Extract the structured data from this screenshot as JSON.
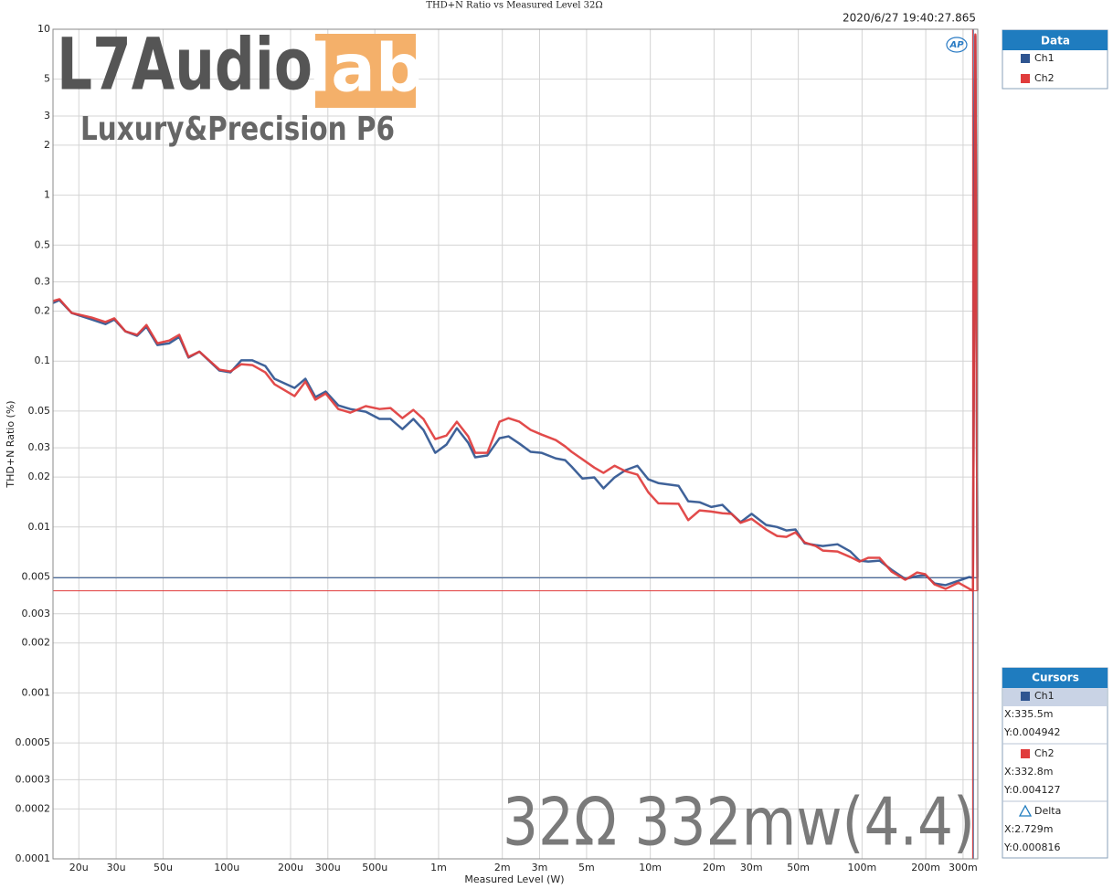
{
  "chart_data": {
    "type": "line",
    "title": "THD+N Ratio vs Measured Level 32Ω",
    "timestamp": "2020/6/27 19:40:27.865",
    "logo": "AP",
    "xlabel": "Measured Level (W)",
    "ylabel": "THD+N Ratio (%)",
    "xscale": "log",
    "yscale": "log",
    "grid": true,
    "xlim": [
      1.51e-05,
      0.352
    ],
    "ylim": [
      0.0001,
      10
    ],
    "xticks": [
      {
        "value": 2e-05,
        "label": "20u"
      },
      {
        "value": 3e-05,
        "label": "30u"
      },
      {
        "value": 5e-05,
        "label": "50u"
      },
      {
        "value": 0.0001,
        "label": "100u"
      },
      {
        "value": 0.0002,
        "label": "200u"
      },
      {
        "value": 0.0003,
        "label": "300u"
      },
      {
        "value": 0.0005,
        "label": "500u"
      },
      {
        "value": 0.001,
        "label": "1m"
      },
      {
        "value": 0.002,
        "label": "2m"
      },
      {
        "value": 0.003,
        "label": "3m"
      },
      {
        "value": 0.005,
        "label": "5m"
      },
      {
        "value": 0.01,
        "label": "10m"
      },
      {
        "value": 0.02,
        "label": "20m"
      },
      {
        "value": 0.03,
        "label": "30m"
      },
      {
        "value": 0.05,
        "label": "50m"
      },
      {
        "value": 0.1,
        "label": "100m"
      },
      {
        "value": 0.2,
        "label": "200m"
      },
      {
        "value": 0.3,
        "label": "300m"
      }
    ],
    "yticks": [
      10,
      5,
      3,
      2,
      1,
      0.5,
      0.3,
      0.2,
      0.1,
      0.05,
      0.03,
      0.02,
      0.01,
      0.005,
      0.003,
      0.002,
      0.001,
      0.0005,
      0.0003,
      0.0002,
      0.0001
    ],
    "x": [
      1.51e-05,
      1.62e-05,
      1.85e-05,
      2.3e-05,
      2.67e-05,
      2.94e-05,
      3.32e-05,
      3.77e-05,
      4.17e-05,
      4.7e-05,
      5.35e-05,
      5.96e-05,
      6.59e-05,
      7.42e-05,
      9.23e-05,
      0.000104,
      0.000117,
      0.000132,
      0.000152,
      0.000168,
      0.000209,
      0.000235,
      0.000262,
      0.000293,
      0.000336,
      0.000383,
      0.000453,
      0.000526,
      0.000593,
      0.000675,
      0.00076,
      0.000848,
      0.000964,
      0.00109,
      0.00122,
      0.00138,
      0.00149,
      0.0017,
      0.00194,
      0.00214,
      0.00241,
      0.00272,
      0.00306,
      0.00358,
      0.00396,
      0.00425,
      0.00478,
      0.00544,
      0.00601,
      0.00678,
      0.00763,
      0.00869,
      0.00978,
      0.0109,
      0.0136,
      0.0151,
      0.0171,
      0.0194,
      0.0219,
      0.0242,
      0.0267,
      0.0301,
      0.0352,
      0.0397,
      0.0439,
      0.0485,
      0.0536,
      0.0604,
      0.0653,
      0.0766,
      0.0881,
      0.0973,
      0.107,
      0.121,
      0.138,
      0.16,
      0.182,
      0.199,
      0.22,
      0.248,
      0.285,
      0.321,
      0.334,
      0.343,
      0.351
    ],
    "series": [
      {
        "name": "Ch1",
        "color": "#2f5590",
        "values": [
          0.224,
          0.233,
          0.195,
          0.178,
          0.167,
          0.178,
          0.151,
          0.142,
          0.161,
          0.125,
          0.128,
          0.14,
          0.105,
          0.114,
          0.0877,
          0.0855,
          0.101,
          0.101,
          0.0934,
          0.0782,
          0.0689,
          0.0782,
          0.0607,
          0.0655,
          0.0541,
          0.0514,
          0.0495,
          0.0448,
          0.0448,
          0.0389,
          0.0448,
          0.0385,
          0.028,
          0.0314,
          0.0394,
          0.0322,
          0.0263,
          0.027,
          0.0343,
          0.0352,
          0.0318,
          0.0284,
          0.028,
          0.0259,
          0.0253,
          0.0231,
          0.0196,
          0.0199,
          0.0171,
          0.0199,
          0.022,
          0.0234,
          0.0194,
          0.0184,
          0.0177,
          0.0143,
          0.0141,
          0.0132,
          0.0136,
          0.012,
          0.0107,
          0.012,
          0.0103,
          0.01,
          0.00953,
          0.00966,
          0.00797,
          0.00778,
          0.00768,
          0.00787,
          0.00712,
          0.00627,
          0.00619,
          0.00627,
          0.00552,
          0.00486,
          0.00506,
          0.00512,
          0.00457,
          0.00446,
          0.00474,
          0.00499,
          0.00494,
          9.1,
          0.00494
        ]
      },
      {
        "name": "Ch2",
        "color": "#e03c3c",
        "values": [
          0.23,
          0.236,
          0.195,
          0.183,
          0.172,
          0.181,
          0.151,
          0.144,
          0.165,
          0.128,
          0.133,
          0.144,
          0.106,
          0.114,
          0.0888,
          0.0866,
          0.0958,
          0.0946,
          0.0855,
          0.0725,
          0.0615,
          0.0753,
          0.0585,
          0.0638,
          0.0514,
          0.0489,
          0.0535,
          0.0514,
          0.0521,
          0.0453,
          0.0508,
          0.0448,
          0.0339,
          0.0356,
          0.0431,
          0.0352,
          0.028,
          0.028,
          0.0431,
          0.0453,
          0.0431,
          0.0385,
          0.0361,
          0.0334,
          0.0306,
          0.0284,
          0.0256,
          0.0228,
          0.0212,
          0.0234,
          0.0217,
          0.0207,
          0.0162,
          0.0139,
          0.0138,
          0.011,
          0.0126,
          0.0124,
          0.0121,
          0.012,
          0.0106,
          0.0112,
          0.00966,
          0.00883,
          0.00872,
          0.00929,
          0.00807,
          0.00768,
          0.00721,
          0.00712,
          0.00659,
          0.00619,
          0.00652,
          0.00652,
          0.00538,
          0.00481,
          0.00532,
          0.00519,
          0.00451,
          0.00424,
          0.00462,
          0.00424,
          0.00413,
          9.3,
          0.00413
        ]
      }
    ],
    "legend": {
      "title": "Data",
      "position": "right"
    },
    "cursors": {
      "title": "Cursors",
      "items": [
        {
          "name": "Ch1",
          "x": {
            "value": 0.3355,
            "label": "X:335.5m"
          },
          "y": {
            "value": 0.004942,
            "label": "Y:0.004942"
          }
        },
        {
          "name": "Ch2",
          "x": {
            "value": 0.3328,
            "label": "X:332.8m"
          },
          "y": {
            "value": 0.004127,
            "label": "Y:0.004127"
          }
        },
        {
          "name": "Delta",
          "x": {
            "value": 0.002729,
            "label": "X:2.729m"
          },
          "y": {
            "value": 0.000816,
            "label": "Y:0.000816"
          }
        }
      ]
    },
    "watermark": {
      "brand": "L7Audio",
      "brand_highlight": "lab",
      "product": "Luxury&Precision P6",
      "condition": "32Ω 332mw(4.4)"
    }
  }
}
